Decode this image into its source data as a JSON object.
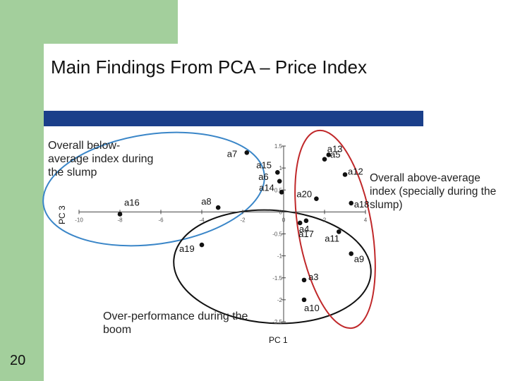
{
  "title": "Main Findings From PCA – Price Index",
  "slide_number": "20",
  "annotations": {
    "below_average": "Overall below-average index during the slump",
    "above_average": "Overall above-average index (specially during the slump)",
    "boom": "Over-performance during the boom"
  },
  "colors": {
    "title_bar": "#1a3f8a",
    "green": "#a3cf9c",
    "blue_ellipse": "#3a86c8",
    "red_ellipse": "#c0282a",
    "black_ellipse": "#111111"
  },
  "chart_data": {
    "type": "scatter",
    "xlabel": "PC 1",
    "ylabel": "PC 3",
    "xlim": [
      -10,
      4
    ],
    "ylim": [
      -2.5,
      1.5
    ],
    "x_ticks": [
      "-10",
      "-8",
      "-6",
      "-4",
      "-2",
      "0",
      "2",
      "4"
    ],
    "y_ticks": [
      "1.5",
      "1",
      "0.5",
      "0",
      "-0.5",
      "-1",
      "-1.5",
      "-2",
      "-2.5"
    ],
    "points": [
      {
        "label": "a7",
        "x": -1.8,
        "y": 1.35
      },
      {
        "label": "a16",
        "x": -8.0,
        "y": -0.05
      },
      {
        "label": "a8",
        "x": -3.2,
        "y": 0.1
      },
      {
        "label": "a19",
        "x": -4.0,
        "y": -0.75
      },
      {
        "label": "a15",
        "x": -0.3,
        "y": 0.9
      },
      {
        "label": "a6",
        "x": -0.2,
        "y": 0.7
      },
      {
        "label": "a14",
        "x": -0.1,
        "y": 0.45
      },
      {
        "label": "a5",
        "x": 2.0,
        "y": 1.2
      },
      {
        "label": "a13",
        "x": 2.2,
        "y": 1.3
      },
      {
        "label": "a12",
        "x": 3.0,
        "y": 0.85
      },
      {
        "label": "a20",
        "x": 1.6,
        "y": 0.3
      },
      {
        "label": "a18",
        "x": 3.3,
        "y": 0.2
      },
      {
        "label": "a17",
        "x": 0.8,
        "y": -0.25
      },
      {
        "label": "a4",
        "x": 1.1,
        "y": -0.2
      },
      {
        "label": "a11",
        "x": 2.7,
        "y": -0.45
      },
      {
        "label": "a9",
        "x": 3.3,
        "y": -0.95
      },
      {
        "label": "a3",
        "x": 1.0,
        "y": -1.55
      },
      {
        "label": "a10",
        "x": 1.0,
        "y": -2.0
      }
    ],
    "grid": false
  }
}
